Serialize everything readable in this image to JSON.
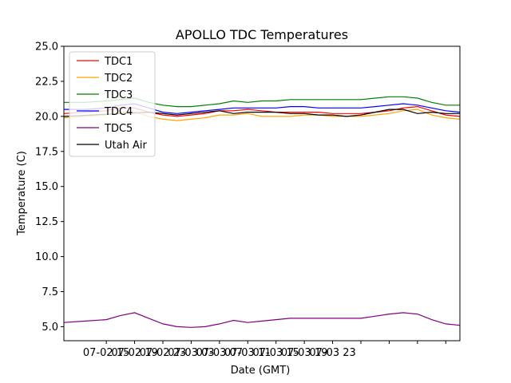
{
  "chart_data": {
    "type": "line",
    "title": "APOLLO TDC Temperatures",
    "xlabel": "Date (GMT)",
    "ylabel": "Temperature (C)",
    "ylim": [
      4.0,
      25.0
    ],
    "xlim": [
      0,
      56
    ],
    "yticks": [
      5.0,
      7.5,
      10.0,
      12.5,
      15.0,
      17.5,
      20.0,
      22.5,
      25.0
    ],
    "ytick_labels": [
      "5.0",
      "7.5",
      "10.0",
      "12.5",
      "15.0",
      "17.5",
      "20.0",
      "22.5",
      "25.0"
    ],
    "xticks": [
      6,
      10,
      14,
      18,
      22,
      26,
      30,
      34,
      38,
      42,
      46,
      50,
      54
    ],
    "xtick_labels": [
      "07-02 15",
      "07-02 19",
      "07-02 23",
      "07-03 03",
      "07-03 07",
      "07-03 11",
      "07-03 15",
      "07-03 19",
      "07-03 23"
    ],
    "xtick_values": [
      6,
      10,
      14,
      18,
      22,
      26,
      30,
      34,
      38
    ],
    "grid": false,
    "legend_position": "top-left",
    "series": [
      {
        "name": "TDC1",
        "color": "#ff0000",
        "x": [
          0,
          3,
          6,
          8,
          10,
          12,
          14,
          16,
          18,
          20,
          22,
          24,
          26,
          28,
          30,
          32,
          34,
          36,
          38,
          40,
          42,
          44,
          46,
          48,
          50,
          52,
          54,
          56
        ],
        "values": [
          20.2,
          20.3,
          20.4,
          20.6,
          20.6,
          20.3,
          20.1,
          20.0,
          20.1,
          20.2,
          20.4,
          20.4,
          20.5,
          20.4,
          20.3,
          20.3,
          20.3,
          20.3,
          20.2,
          20.2,
          20.2,
          20.3,
          20.4,
          20.6,
          20.7,
          20.4,
          20.1,
          20.0
        ]
      },
      {
        "name": "TDC2",
        "color": "#ffa500",
        "x": [
          0,
          3,
          6,
          8,
          10,
          12,
          14,
          16,
          18,
          20,
          22,
          24,
          26,
          28,
          30,
          32,
          34,
          36,
          38,
          40,
          42,
          44,
          46,
          48,
          50,
          52,
          54,
          56
        ],
        "values": [
          19.9,
          20.0,
          20.1,
          20.3,
          20.3,
          20.0,
          19.8,
          19.7,
          19.8,
          19.9,
          20.1,
          20.1,
          20.2,
          20.0,
          20.0,
          20.0,
          20.1,
          20.1,
          20.0,
          20.0,
          20.0,
          20.1,
          20.2,
          20.4,
          20.5,
          20.1,
          19.9,
          19.8
        ]
      },
      {
        "name": "TDC3",
        "color": "#008000",
        "x": [
          0,
          3,
          6,
          8,
          10,
          12,
          14,
          16,
          18,
          20,
          22,
          24,
          26,
          28,
          30,
          32,
          34,
          36,
          38,
          40,
          42,
          44,
          46,
          48,
          50,
          52,
          54,
          56
        ],
        "values": [
          21.0,
          21.0,
          21.1,
          21.2,
          21.3,
          21.0,
          20.8,
          20.7,
          20.7,
          20.8,
          20.9,
          21.1,
          21.0,
          21.1,
          21.1,
          21.2,
          21.2,
          21.2,
          21.2,
          21.2,
          21.2,
          21.3,
          21.4,
          21.4,
          21.3,
          21.0,
          20.8,
          20.8
        ]
      },
      {
        "name": "TDC4",
        "color": "#0000ff",
        "x": [
          0,
          3,
          6,
          8,
          10,
          12,
          14,
          16,
          18,
          20,
          22,
          24,
          26,
          28,
          30,
          32,
          34,
          36,
          38,
          40,
          42,
          44,
          46,
          48,
          50,
          52,
          54,
          56
        ],
        "values": [
          20.5,
          20.5,
          20.6,
          20.8,
          20.9,
          20.6,
          20.3,
          20.2,
          20.3,
          20.4,
          20.5,
          20.6,
          20.6,
          20.6,
          20.6,
          20.7,
          20.7,
          20.6,
          20.6,
          20.6,
          20.6,
          20.7,
          20.8,
          20.9,
          20.8,
          20.6,
          20.4,
          20.3
        ]
      },
      {
        "name": "TDC5",
        "color": "#800080",
        "x": [
          0,
          3,
          6,
          8,
          10,
          12,
          14,
          16,
          18,
          20,
          22,
          24,
          26,
          28,
          30,
          32,
          34,
          36,
          38,
          40,
          42,
          44,
          46,
          48,
          50,
          52,
          54,
          56
        ],
        "values": [
          5.3,
          5.4,
          5.5,
          5.8,
          6.0,
          5.6,
          5.2,
          5.0,
          4.95,
          5.0,
          5.2,
          5.45,
          5.3,
          5.4,
          5.5,
          5.6,
          5.6,
          5.6,
          5.6,
          5.6,
          5.6,
          5.75,
          5.9,
          6.0,
          5.9,
          5.5,
          5.2,
          5.1
        ]
      },
      {
        "name": "Utah Air",
        "color": "#000000",
        "x": [
          0,
          4,
          8,
          12,
          14,
          16,
          18,
          20,
          22,
          24,
          26,
          28,
          30,
          32,
          34,
          36,
          38,
          40,
          42,
          44,
          46,
          48,
          50,
          52,
          54,
          56
        ],
        "values": [
          20.0,
          20.1,
          20.2,
          20.3,
          20.2,
          20.1,
          20.2,
          20.3,
          20.4,
          20.2,
          20.3,
          20.3,
          20.3,
          20.2,
          20.2,
          20.1,
          20.1,
          20.0,
          20.1,
          20.3,
          20.5,
          20.5,
          20.2,
          20.3,
          20.2,
          20.2
        ]
      }
    ]
  }
}
